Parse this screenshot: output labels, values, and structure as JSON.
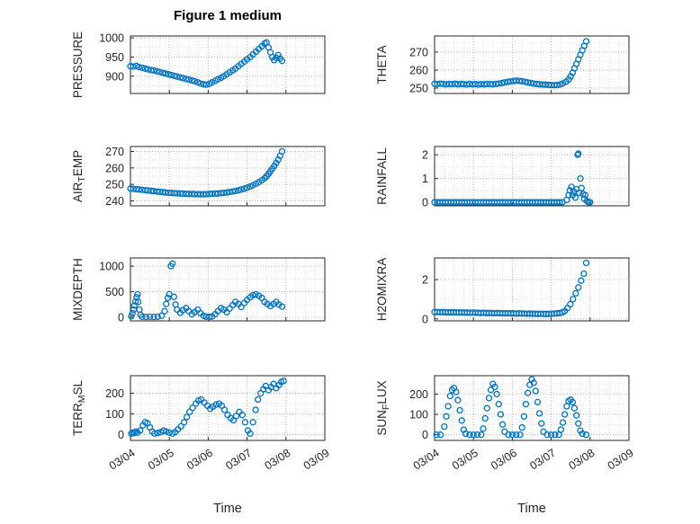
{
  "title": "Figure 1 medium",
  "xlabel": "Time",
  "xticklabels": [
    "03/04",
    "03/05",
    "03/06",
    "03/07",
    "03/08",
    "03/09"
  ],
  "xlim": [
    0,
    5
  ],
  "marker_color": "#0072BD",
  "axis_color": "#262626",
  "chart_data": [
    {
      "type": "scatter",
      "name": "PRESSURE",
      "ylabel_parts": [
        {
          "text": "PRESSURE"
        }
      ],
      "yticks": [
        900,
        950,
        1000
      ],
      "ylim": [
        855,
        1005
      ],
      "x": [
        0.0,
        0.07,
        0.15,
        0.22,
        0.3,
        0.38,
        0.45,
        0.53,
        0.6,
        0.68,
        0.75,
        0.83,
        0.9,
        0.98,
        1.05,
        1.13,
        1.2,
        1.28,
        1.35,
        1.43,
        1.5,
        1.58,
        1.65,
        1.73,
        1.8,
        1.88,
        1.95,
        2.03,
        2.1,
        2.18,
        2.25,
        2.33,
        2.4,
        2.48,
        2.55,
        2.63,
        2.7,
        2.78,
        2.85,
        2.93,
        3.0,
        3.08,
        3.15,
        3.23,
        3.3,
        3.38,
        3.45,
        3.5,
        3.55,
        3.6,
        3.65,
        3.7,
        3.75,
        3.8,
        3.85,
        3.9
      ],
      "y": [
        926,
        925,
        927,
        924,
        922,
        920,
        918,
        916,
        915,
        913,
        911,
        909,
        907,
        905,
        903,
        901,
        899,
        897,
        895,
        893,
        891,
        889,
        887,
        884,
        881,
        879,
        878,
        880,
        884,
        888,
        892,
        896,
        900,
        905,
        910,
        915,
        920,
        926,
        932,
        938,
        944,
        950,
        957,
        964,
        971,
        978,
        985,
        988,
        975,
        962,
        950,
        942,
        948,
        955,
        946,
        940
      ]
    },
    {
      "type": "scatter",
      "name": "THETA",
      "ylabel_parts": [
        {
          "text": "THETA"
        }
      ],
      "yticks": [
        250,
        260,
        270
      ],
      "ylim": [
        247,
        279
      ],
      "x": [
        0.0,
        0.07,
        0.15,
        0.22,
        0.3,
        0.38,
        0.45,
        0.53,
        0.6,
        0.68,
        0.75,
        0.83,
        0.9,
        0.98,
        1.05,
        1.13,
        1.2,
        1.28,
        1.35,
        1.43,
        1.5,
        1.58,
        1.65,
        1.73,
        1.8,
        1.88,
        1.95,
        2.03,
        2.1,
        2.18,
        2.25,
        2.33,
        2.4,
        2.48,
        2.55,
        2.63,
        2.7,
        2.78,
        2.85,
        2.93,
        3.0,
        3.08,
        3.15,
        3.23,
        3.3,
        3.38,
        3.45,
        3.5,
        3.55,
        3.6,
        3.65,
        3.7,
        3.75,
        3.8,
        3.85,
        3.9
      ],
      "y": [
        252.4,
        252.2,
        252.5,
        252.3,
        252.1,
        252.3,
        252.2,
        252.4,
        252.1,
        252.3,
        252.2,
        252.0,
        252.3,
        252.1,
        252.2,
        252.0,
        252.2,
        252.1,
        252.3,
        252.2,
        252.1,
        252.3,
        252.5,
        252.8,
        253.1,
        253.4,
        253.7,
        253.9,
        254.1,
        254.0,
        253.8,
        253.5,
        253.1,
        252.8,
        252.5,
        252.3,
        252.1,
        252.0,
        251.9,
        251.8,
        251.7,
        251.6,
        251.7,
        252.0,
        252.6,
        253.5,
        254.8,
        256.5,
        258.5,
        261.0,
        263.5,
        266.0,
        268.5,
        271.0,
        273.5,
        276.0
      ]
    },
    {
      "type": "scatter",
      "name": "AIR_TEMP",
      "ylabel_parts": [
        {
          "text": "AIR"
        },
        {
          "text": "T",
          "sub": true
        },
        {
          "text": "EMP"
        }
      ],
      "yticks": [
        240,
        250,
        260,
        270
      ],
      "ylim": [
        237,
        273
      ],
      "x": [
        0.0,
        0.07,
        0.15,
        0.22,
        0.3,
        0.38,
        0.45,
        0.53,
        0.6,
        0.68,
        0.75,
        0.83,
        0.9,
        0.98,
        1.05,
        1.13,
        1.2,
        1.28,
        1.35,
        1.43,
        1.5,
        1.58,
        1.65,
        1.73,
        1.8,
        1.88,
        1.95,
        2.03,
        2.1,
        2.18,
        2.25,
        2.33,
        2.4,
        2.48,
        2.55,
        2.63,
        2.7,
        2.78,
        2.85,
        2.93,
        3.0,
        3.08,
        3.15,
        3.23,
        3.3,
        3.38,
        3.45,
        3.5,
        3.55,
        3.6,
        3.65,
        3.7,
        3.75,
        3.8,
        3.85,
        3.9
      ],
      "y": [
        247.5,
        247.3,
        247.1,
        246.9,
        246.7,
        246.5,
        246.3,
        246.1,
        245.9,
        245.7,
        245.5,
        245.3,
        245.1,
        244.9,
        244.8,
        244.7,
        244.6,
        244.5,
        244.4,
        244.3,
        244.2,
        244.2,
        244.1,
        244.1,
        244.0,
        244.0,
        244.1,
        244.2,
        244.3,
        244.4,
        244.5,
        244.7,
        244.9,
        245.1,
        245.4,
        245.7,
        246.0,
        246.4,
        246.9,
        247.4,
        248.0,
        248.7,
        249.5,
        250.4,
        251.4,
        252.5,
        253.7,
        255.0,
        256.4,
        257.9,
        259.5,
        261.2,
        263.0,
        265.0,
        267.3,
        270.0
      ]
    },
    {
      "type": "scatter",
      "name": "RAINFALL",
      "ylabel_parts": [
        {
          "text": "RAINFALL"
        }
      ],
      "yticks": [
        0,
        1,
        2
      ],
      "ylim": [
        -0.15,
        2.35
      ],
      "x": [
        0.0,
        0.07,
        0.14,
        0.21,
        0.28,
        0.35,
        0.42,
        0.49,
        0.56,
        0.63,
        0.7,
        0.77,
        0.84,
        0.91,
        0.98,
        1.05,
        1.12,
        1.19,
        1.26,
        1.33,
        1.4,
        1.47,
        1.54,
        1.61,
        1.68,
        1.75,
        1.82,
        1.89,
        1.96,
        2.03,
        2.1,
        2.17,
        2.24,
        2.31,
        2.38,
        2.45,
        2.52,
        2.59,
        2.66,
        2.73,
        2.8,
        2.87,
        2.94,
        3.01,
        3.08,
        3.15,
        3.22,
        3.29,
        3.4,
        3.45,
        3.48,
        3.52,
        3.55,
        3.58,
        3.62,
        3.65,
        3.68,
        3.7,
        3.72,
        3.75,
        3.78,
        3.82,
        3.85,
        3.88,
        3.92,
        3.96,
        4.0
      ],
      "y": [
        0,
        0,
        0,
        0,
        0,
        0,
        0,
        0,
        0,
        0,
        0,
        0,
        0,
        0,
        0,
        0,
        0,
        0,
        0,
        0,
        0,
        0,
        0,
        0,
        0,
        0,
        0,
        0,
        0,
        0,
        0,
        0,
        0,
        0,
        0,
        0,
        0,
        0,
        0,
        0,
        0,
        0,
        0,
        0,
        0,
        0,
        0,
        0,
        0.1,
        0.3,
        0.5,
        0.65,
        0.3,
        0.45,
        0.2,
        0.55,
        2.0,
        2.05,
        0.4,
        1.0,
        0.6,
        0.35,
        0.15,
        0.3,
        0.05,
        0,
        0
      ]
    },
    {
      "type": "scatter",
      "name": "MIXDEPTH",
      "ylabel_parts": [
        {
          "text": "MIXDEPTH"
        }
      ],
      "yticks": [
        0,
        500,
        1000
      ],
      "ylim": [
        -70,
        1160
      ],
      "x": [
        0.02,
        0.05,
        0.08,
        0.1,
        0.13,
        0.16,
        0.18,
        0.2,
        0.23,
        0.26,
        0.3,
        0.4,
        0.5,
        0.6,
        0.7,
        0.8,
        0.88,
        0.92,
        0.96,
        1.0,
        1.04,
        1.08,
        1.12,
        1.16,
        1.2,
        1.28,
        1.35,
        1.43,
        1.5,
        1.58,
        1.65,
        1.73,
        1.8,
        1.88,
        1.95,
        2.03,
        2.1,
        2.18,
        2.25,
        2.33,
        2.4,
        2.48,
        2.55,
        2.63,
        2.7,
        2.78,
        2.85,
        2.93,
        3.0,
        3.08,
        3.15,
        3.22,
        3.3,
        3.38,
        3.45,
        3.52,
        3.6,
        3.68,
        3.75,
        3.82,
        3.9
      ],
      "y": [
        20,
        80,
        150,
        230,
        310,
        390,
        450,
        300,
        150,
        50,
        10,
        5,
        10,
        5,
        10,
        30,
        120,
        260,
        380,
        450,
        1000,
        1050,
        400,
        250,
        150,
        90,
        140,
        180,
        120,
        60,
        100,
        150,
        80,
        30,
        10,
        5,
        15,
        60,
        120,
        180,
        150,
        100,
        170,
        240,
        300,
        260,
        200,
        280,
        340,
        390,
        430,
        450,
        420,
        380,
        300,
        260,
        220,
        260,
        300,
        250,
        210
      ]
    },
    {
      "type": "scatter",
      "name": "H2OMIXRA",
      "ylabel_parts": [
        {
          "text": "H2OMIXRA"
        }
      ],
      "yticks": [
        0,
        2
      ],
      "ylim": [
        -0.1,
        3.1
      ],
      "x": [
        0.0,
        0.07,
        0.14,
        0.21,
        0.28,
        0.35,
        0.42,
        0.49,
        0.56,
        0.63,
        0.7,
        0.77,
        0.84,
        0.91,
        0.98,
        1.05,
        1.12,
        1.19,
        1.26,
        1.33,
        1.4,
        1.47,
        1.54,
        1.61,
        1.68,
        1.75,
        1.82,
        1.89,
        1.96,
        2.03,
        2.1,
        2.17,
        2.24,
        2.31,
        2.38,
        2.45,
        2.52,
        2.59,
        2.66,
        2.73,
        2.8,
        2.87,
        2.94,
        3.01,
        3.08,
        3.15,
        3.22,
        3.29,
        3.35,
        3.42,
        3.49,
        3.56,
        3.63,
        3.7,
        3.77,
        3.84,
        3.9
      ],
      "y": [
        0.35,
        0.35,
        0.34,
        0.35,
        0.34,
        0.33,
        0.34,
        0.33,
        0.33,
        0.32,
        0.33,
        0.32,
        0.32,
        0.31,
        0.32,
        0.31,
        0.31,
        0.3,
        0.31,
        0.3,
        0.3,
        0.3,
        0.29,
        0.3,
        0.29,
        0.29,
        0.28,
        0.29,
        0.28,
        0.28,
        0.27,
        0.28,
        0.27,
        0.27,
        0.26,
        0.27,
        0.26,
        0.26,
        0.25,
        0.26,
        0.25,
        0.25,
        0.25,
        0.26,
        0.27,
        0.28,
        0.3,
        0.33,
        0.4,
        0.55,
        0.75,
        1.0,
        1.3,
        1.6,
        1.95,
        2.3,
        2.85
      ]
    },
    {
      "type": "scatter",
      "name": "TERR_MSL",
      "ylabel_parts": [
        {
          "text": "TERR"
        },
        {
          "text": "M",
          "sub": true
        },
        {
          "text": "SL"
        }
      ],
      "yticks": [
        0,
        100,
        200
      ],
      "ylim": [
        -28,
        285
      ],
      "x": [
        0.02,
        0.06,
        0.1,
        0.14,
        0.18,
        0.25,
        0.32,
        0.38,
        0.44,
        0.5,
        0.56,
        0.62,
        0.7,
        0.78,
        0.85,
        0.92,
        1.0,
        1.08,
        1.15,
        1.22,
        1.3,
        1.38,
        1.45,
        1.52,
        1.6,
        1.68,
        1.75,
        1.82,
        1.9,
        1.98,
        2.05,
        2.12,
        2.2,
        2.28,
        2.35,
        2.42,
        2.5,
        2.58,
        2.65,
        2.72,
        2.8,
        2.88,
        2.95,
        3.02,
        3.08,
        3.15,
        3.22,
        3.28,
        3.35,
        3.42,
        3.48,
        3.55,
        3.62,
        3.68,
        3.75,
        3.82,
        3.88,
        3.94
      ],
      "y": [
        5,
        10,
        8,
        15,
        10,
        20,
        45,
        60,
        55,
        35,
        15,
        5,
        8,
        12,
        20,
        15,
        10,
        5,
        12,
        25,
        40,
        60,
        85,
        110,
        130,
        150,
        165,
        170,
        155,
        140,
        125,
        135,
        145,
        150,
        140,
        120,
        95,
        80,
        70,
        90,
        110,
        95,
        60,
        20,
        5,
        60,
        120,
        170,
        200,
        220,
        235,
        215,
        230,
        245,
        225,
        240,
        255,
        260
      ]
    },
    {
      "type": "scatter",
      "name": "SUN_FLUX",
      "ylabel_parts": [
        {
          "text": "SUN"
        },
        {
          "text": "F",
          "sub": true
        },
        {
          "text": "LUX"
        }
      ],
      "yticks": [
        0,
        100,
        200
      ],
      "ylim": [
        -28,
        290
      ],
      "x": [
        0.05,
        0.15,
        0.25,
        0.3,
        0.35,
        0.4,
        0.45,
        0.5,
        0.55,
        0.6,
        0.65,
        0.7,
        0.75,
        0.8,
        0.9,
        1.0,
        1.1,
        1.2,
        1.25,
        1.3,
        1.35,
        1.4,
        1.45,
        1.5,
        1.55,
        1.6,
        1.65,
        1.7,
        1.75,
        1.8,
        1.9,
        2.0,
        2.1,
        2.2,
        2.25,
        2.3,
        2.35,
        2.4,
        2.45,
        2.5,
        2.55,
        2.6,
        2.65,
        2.7,
        2.75,
        2.8,
        2.9,
        3.0,
        3.1,
        3.2,
        3.25,
        3.3,
        3.35,
        3.4,
        3.45,
        3.5,
        3.55,
        3.6,
        3.65,
        3.7,
        3.75,
        3.8,
        3.9
      ],
      "y": [
        0,
        0,
        40,
        90,
        140,
        190,
        220,
        230,
        210,
        170,
        120,
        70,
        25,
        5,
        0,
        0,
        0,
        0,
        30,
        80,
        130,
        180,
        220,
        250,
        235,
        200,
        150,
        100,
        50,
        15,
        0,
        0,
        0,
        0,
        35,
        90,
        150,
        205,
        245,
        272,
        255,
        215,
        160,
        105,
        55,
        15,
        0,
        0,
        0,
        0,
        25,
        60,
        100,
        140,
        165,
        172,
        160,
        130,
        95,
        55,
        20,
        5,
        0
      ]
    }
  ]
}
